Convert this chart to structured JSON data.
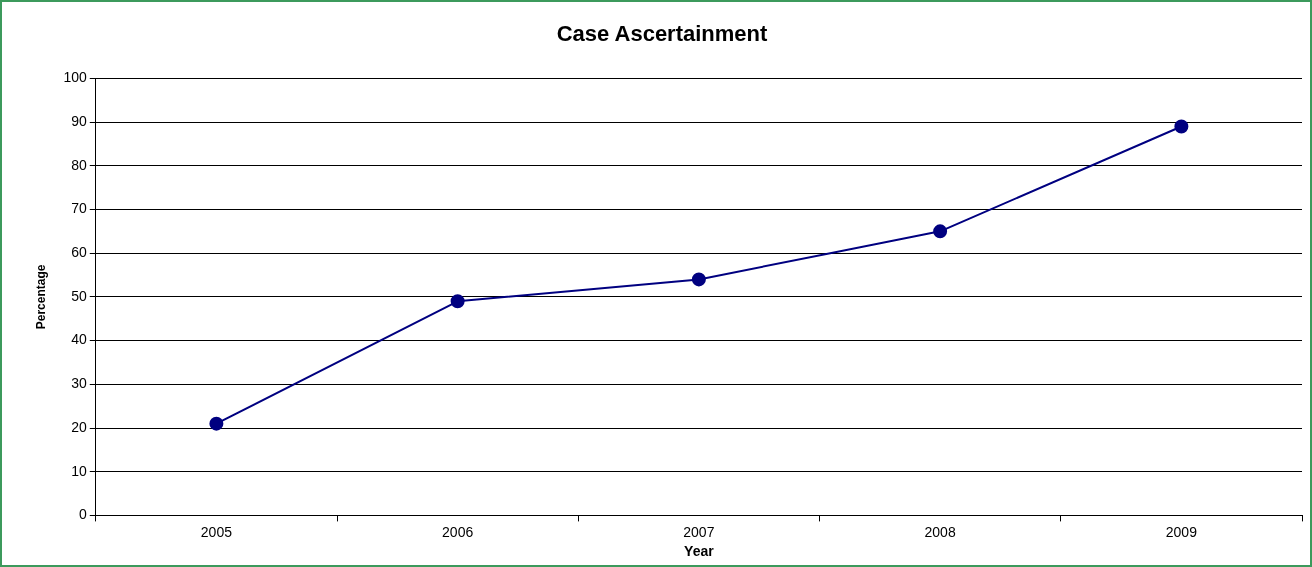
{
  "chart_data": {
    "type": "line",
    "title": "Case Ascertainment",
    "xlabel": "Year",
    "ylabel": "Percentage",
    "categories": [
      "2005",
      "2006",
      "2007",
      "2008",
      "2009"
    ],
    "series": [
      {
        "color": "#000080",
        "values": [
          21,
          49,
          54,
          65,
          89
        ]
      }
    ],
    "ylim": [
      0,
      100
    ],
    "yticks": [
      0,
      10,
      20,
      30,
      40,
      50,
      60,
      70,
      80,
      90,
      100
    ],
    "grid": "y",
    "legend": false,
    "marker": "circle",
    "line_style": "solid"
  }
}
